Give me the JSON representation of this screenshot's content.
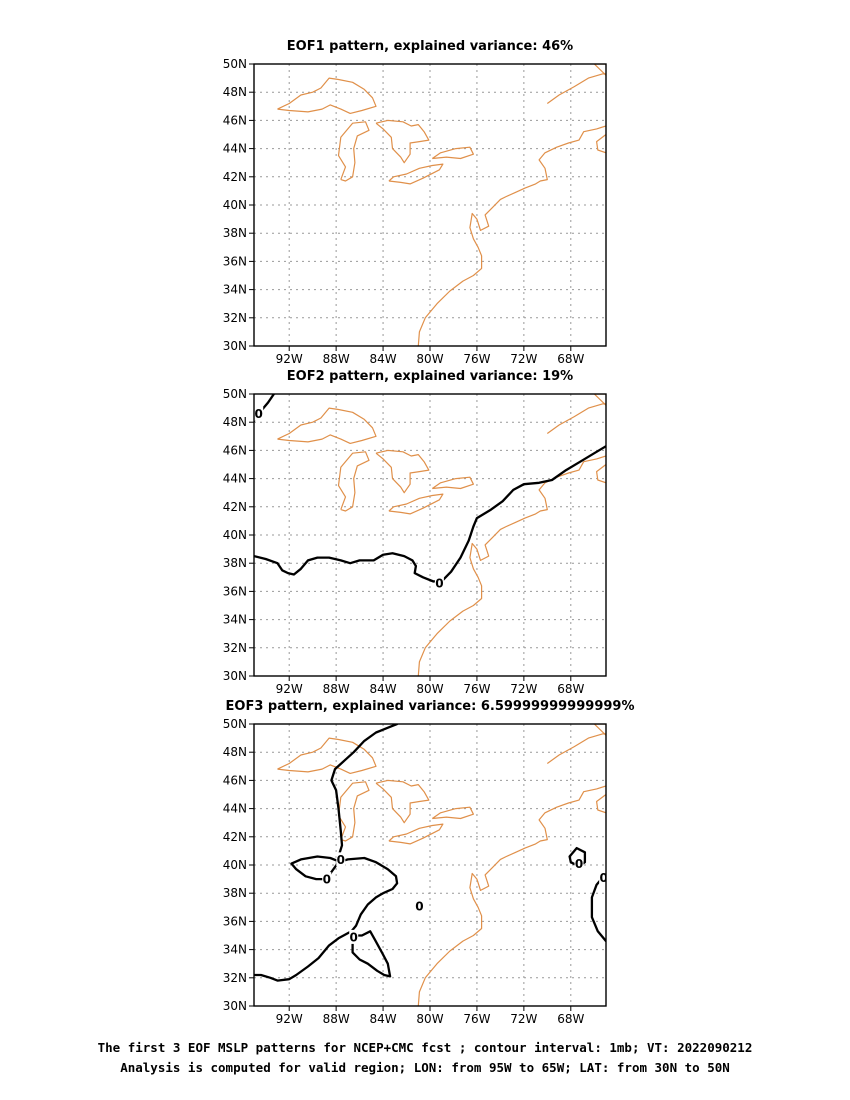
{
  "chart_data": [
    {
      "type": "contour",
      "title": "EOF1 pattern, explained variance: 46%",
      "xticks": [
        "92W",
        "88W",
        "84W",
        "80W",
        "76W",
        "72W",
        "68W"
      ],
      "yticks": [
        "30N",
        "32N",
        "34N",
        "36N",
        "38N",
        "40N",
        "42N",
        "44N",
        "46N",
        "48N",
        "50N"
      ],
      "xlim": [
        -95,
        -65
      ],
      "ylim": [
        30,
        50
      ],
      "grid": true,
      "contour_labels": []
    },
    {
      "type": "contour",
      "title": "EOF2 pattern, explained variance: 19%",
      "xticks": [
        "92W",
        "88W",
        "84W",
        "80W",
        "76W",
        "72W",
        "68W"
      ],
      "yticks": [
        "30N",
        "32N",
        "34N",
        "36N",
        "38N",
        "40N",
        "42N",
        "44N",
        "46N",
        "48N",
        "50N"
      ],
      "xlim": [
        -95,
        -65
      ],
      "ylim": [
        30,
        50
      ],
      "grid": true,
      "contour_labels": [
        {
          "text": "0",
          "lon": -94.6,
          "lat": 48.6
        },
        {
          "text": "0",
          "lon": -79.2,
          "lat": 36.6
        }
      ]
    },
    {
      "type": "contour",
      "title": "EOF3 pattern, explained variance: 6.59999999999999%",
      "xticks": [
        "92W",
        "88W",
        "84W",
        "80W",
        "76W",
        "72W",
        "68W"
      ],
      "yticks": [
        "30N",
        "32N",
        "34N",
        "36N",
        "38N",
        "40N",
        "42N",
        "44N",
        "46N",
        "48N",
        "50N"
      ],
      "xlim": [
        -95,
        -65
      ],
      "ylim": [
        30,
        50
      ],
      "grid": true,
      "contour_labels": [
        {
          "text": "0",
          "lon": -88.8,
          "lat": 39.0
        },
        {
          "text": "0",
          "lon": -87.6,
          "lat": 40.4
        },
        {
          "text": "0",
          "lon": -86.5,
          "lat": 34.9
        },
        {
          "text": "0",
          "lon": -80.9,
          "lat": 37.1
        },
        {
          "text": "0",
          "lon": -67.3,
          "lat": 40.1
        },
        {
          "text": "0",
          "lon": -65.2,
          "lat": 39.1
        }
      ]
    }
  ],
  "caption": {
    "line1": "The first 3 EOF MSLP patterns for NCEP+CMC fcst ; contour interval: 1mb; VT: 2022090212",
    "line2": "Analysis is computed for valid region; LON: from 95W to 65W; LAT: from 30N to 50N"
  },
  "colors": {
    "coastline": "#e0904a",
    "contour": "#000000",
    "grid": "#999999"
  }
}
